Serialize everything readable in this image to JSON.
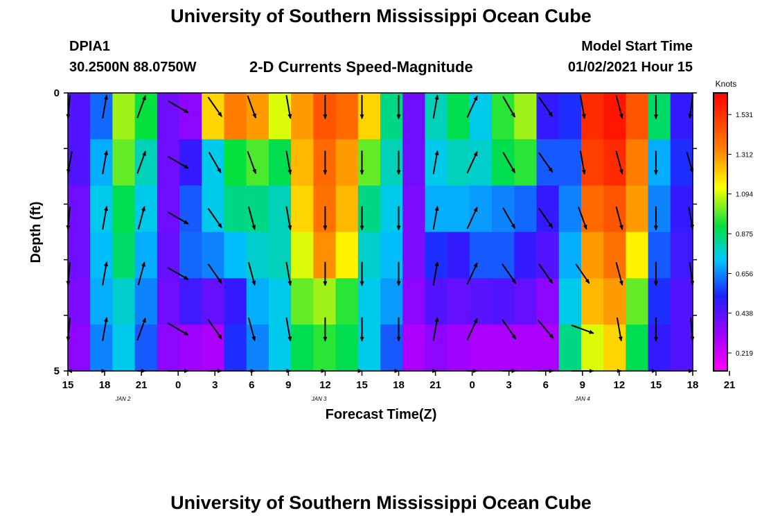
{
  "header": {
    "title": "University of Southern Mississippi Ocean Cube",
    "station_id": "DPIA1",
    "station_coords": "30.2500N 88.0750W",
    "subtitle": "2-D Currents Speed-Magnitude",
    "model_label": "Model Start Time",
    "model_time": "01/02/2021 Hour 15"
  },
  "footer": {
    "title": "University of Southern Mississippi Ocean Cube"
  },
  "chart_data": {
    "type": "heatmap",
    "title": "2-D Currents Speed-Magnitude",
    "xlabel": "Forecast Time(Z)",
    "ylabel": "Depth (ft)",
    "y_tick_labels": [
      "0",
      "5"
    ],
    "ylim": [
      0,
      5
    ],
    "y_inverted": true,
    "xlim": [
      15,
      66
    ],
    "x_tick_labels": [
      "15",
      "18",
      "21",
      "0",
      "3",
      "6",
      "9",
      "12",
      "15",
      "18",
      "21",
      "0",
      "3",
      "6",
      "9",
      "12",
      "15",
      "18",
      "21"
    ],
    "date_labels": [
      {
        "label": "JAN 2",
        "hour": 19.5
      },
      {
        "label": "JAN 3",
        "hour": 35.5
      },
      {
        "label": "JAN 4",
        "hour": 57
      }
    ],
    "colorbar": {
      "unit": "Knots",
      "min": 0.12,
      "max": 1.65,
      "ticks": [
        "1.531",
        "1.312",
        "1.094",
        "0.875",
        "0.656",
        "0.438",
        "0.219"
      ],
      "tick_values": [
        1.531,
        1.312,
        1.094,
        0.875,
        0.656,
        0.438,
        0.219
      ]
    },
    "grid": false,
    "speed_rows": [
      [
        0.45,
        0.62,
        1.05,
        0.92,
        0.4,
        0.35,
        1.2,
        1.35,
        1.3,
        1.1,
        1.3,
        1.45,
        1.4,
        1.2,
        0.85,
        0.4,
        0.8,
        0.9,
        0.75,
        0.95,
        1.05,
        0.5,
        0.55,
        1.55,
        1.6,
        1.45,
        0.88,
        0.5
      ],
      [
        0.45,
        0.7,
        1.0,
        0.8,
        0.4,
        0.5,
        0.75,
        0.92,
        0.98,
        0.9,
        1.25,
        1.4,
        1.3,
        1.0,
        0.8,
        0.4,
        0.75,
        0.8,
        0.78,
        0.9,
        0.95,
        0.6,
        0.6,
        1.5,
        1.55,
        1.35,
        0.7,
        0.55
      ],
      [
        0.4,
        0.75,
        0.9,
        0.75,
        0.4,
        0.6,
        0.75,
        0.85,
        0.85,
        0.8,
        1.2,
        1.38,
        1.25,
        0.85,
        0.75,
        0.38,
        0.7,
        0.7,
        0.68,
        0.65,
        0.62,
        0.5,
        0.65,
        1.4,
        1.45,
        1.3,
        0.65,
        0.5
      ],
      [
        0.4,
        0.72,
        0.88,
        0.7,
        0.42,
        0.62,
        0.65,
        0.72,
        0.78,
        0.8,
        1.1,
        1.32,
        1.15,
        0.78,
        0.72,
        0.38,
        0.55,
        0.5,
        0.6,
        0.6,
        0.5,
        0.45,
        0.7,
        1.3,
        1.38,
        1.15,
        0.6,
        0.48
      ],
      [
        0.38,
        0.7,
        0.78,
        0.65,
        0.4,
        0.48,
        0.42,
        0.5,
        0.7,
        0.75,
        1.0,
        1.05,
        0.95,
        0.75,
        0.68,
        0.35,
        0.45,
        0.42,
        0.44,
        0.45,
        0.42,
        0.35,
        0.75,
        1.25,
        1.3,
        1.0,
        0.55,
        0.45
      ],
      [
        0.35,
        0.65,
        0.75,
        0.6,
        0.35,
        0.32,
        0.3,
        0.55,
        0.65,
        0.75,
        0.9,
        0.95,
        0.9,
        0.75,
        0.6,
        0.3,
        0.35,
        0.32,
        0.3,
        0.3,
        0.3,
        0.3,
        0.85,
        1.1,
        1.2,
        0.9,
        0.5,
        0.45
      ]
    ],
    "vector_hours": [
      15,
      18,
      21,
      24,
      27,
      30,
      33,
      36,
      39,
      42,
      45,
      48,
      51,
      54,
      57,
      60,
      63,
      66
    ],
    "vector_depths": [
      0,
      1,
      2,
      3,
      4,
      5
    ],
    "direction_rows_deg": [
      [
        190,
        10,
        20,
        120,
        145,
        160,
        170,
        180,
        180,
        180,
        10,
        25,
        150,
        145,
        170,
        165,
        180,
        195
      ],
      [
        200,
        10,
        20,
        120,
        150,
        160,
        170,
        180,
        180,
        180,
        10,
        25,
        150,
        145,
        170,
        165,
        180,
        150
      ],
      [
        190,
        10,
        15,
        120,
        145,
        165,
        170,
        180,
        180,
        180,
        10,
        25,
        150,
        145,
        160,
        165,
        180,
        160
      ],
      [
        190,
        10,
        15,
        120,
        145,
        165,
        170,
        180,
        180,
        180,
        10,
        25,
        145,
        145,
        145,
        165,
        180,
        165
      ],
      [
        190,
        10,
        20,
        120,
        145,
        165,
        170,
        180,
        180,
        180,
        10,
        25,
        145,
        140,
        110,
        170,
        180,
        170
      ],
      [
        190,
        5,
        20,
        120,
        145,
        165,
        170,
        180,
        180,
        180,
        5,
        25,
        145,
        140,
        70,
        170,
        180,
        180
      ]
    ]
  }
}
